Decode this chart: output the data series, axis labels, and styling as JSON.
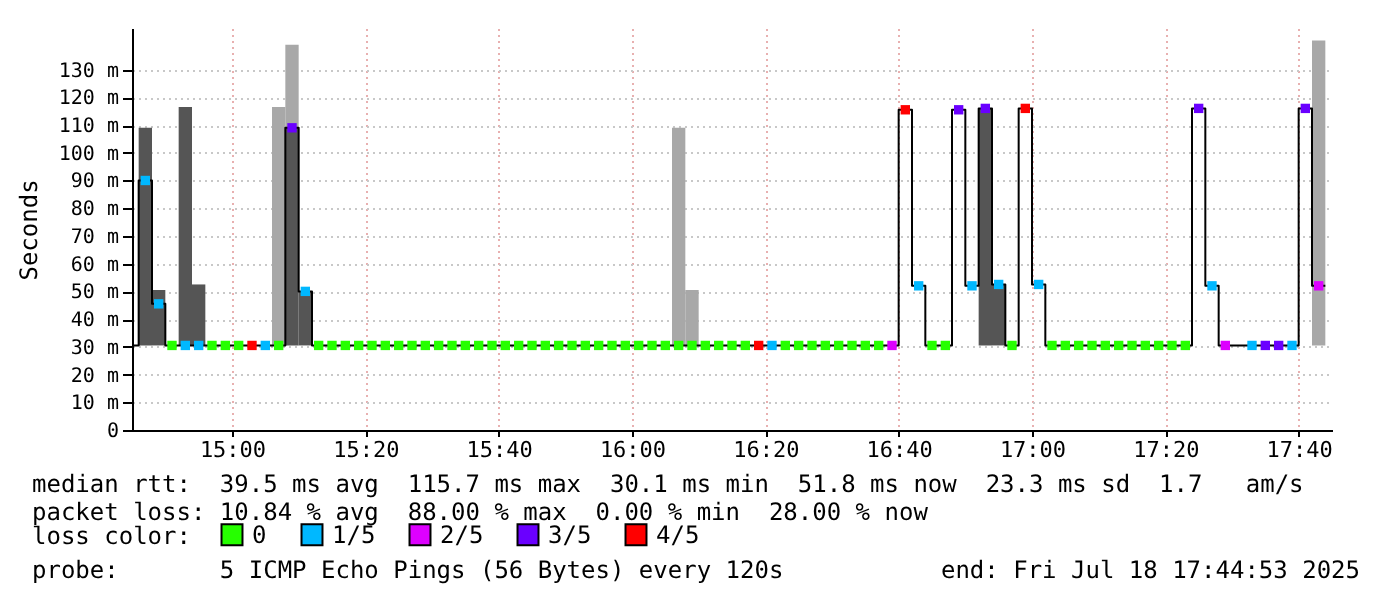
{
  "chart_data": {
    "type": "step",
    "ylabel": "Seconds",
    "xlim": [
      "2025-07-18T14:45",
      "2025-07-18T17:45"
    ],
    "xticks": [
      {
        "value": "2025-07-18T15:00",
        "label": "15:00"
      },
      {
        "value": "2025-07-18T15:20",
        "label": "15:20"
      },
      {
        "value": "2025-07-18T15:40",
        "label": "15:40"
      },
      {
        "value": "2025-07-18T16:00",
        "label": "16:00"
      },
      {
        "value": "2025-07-18T16:20",
        "label": "16:20"
      },
      {
        "value": "2025-07-18T16:40",
        "label": "16:40"
      },
      {
        "value": "2025-07-18T17:00",
        "label": "17:00"
      },
      {
        "value": "2025-07-18T17:20",
        "label": "17:20"
      },
      {
        "value": "2025-07-18T17:40",
        "label": "17:40"
      }
    ],
    "ylim": [
      0,
      145
    ],
    "yticks": [
      0,
      {
        "value": 10,
        "label": "10 m"
      },
      {
        "value": 20,
        "label": "20 m"
      },
      {
        "value": 30,
        "label": "30 m"
      },
      {
        "value": 40,
        "label": "40 m"
      },
      {
        "value": 50,
        "label": "50 m"
      },
      {
        "value": 60,
        "label": "60 m"
      },
      {
        "value": 70,
        "label": "70 m"
      },
      {
        "value": 80,
        "label": "80 m"
      },
      {
        "value": 90,
        "label": "90 m"
      },
      {
        "value": 100,
        "label": "100 m"
      },
      {
        "value": 110,
        "label": "110 m"
      },
      {
        "value": 120,
        "label": "120 m"
      },
      {
        "value": 130,
        "label": "130 m"
      }
    ],
    "grid": true,
    "legend": "bottom left",
    "legend_title": "loss color:",
    "marker": "square",
    "line_style": "solid",
    "annotations": [
      "median rtt:  39.5 ms avg  115.7 ms max  30.1 ms min  51.8 ms now  23.3 ms sd  1.7   am/s",
      "packet loss: 10.84 % avg  88.00 % max  0.00 % min  28.00 % now",
      "probe:       5 ICMP Echo Pings (56 Bytes) every 120s",
      "end: Fri Jul 18 17:44:53 2025"
    ],
    "series": [
      {
        "type": "bar",
        "color": "#555555",
        "x": [
          "2025-07-18T14:47",
          "2025-07-18T14:49",
          "2025-07-18T14:53",
          "2025-07-18T14:55",
          "2025-07-18T15:09",
          "2025-07-18T15:11",
          "2025-07-18T16:53",
          "2025-07-18T16:55"
        ],
        "base": [
          30.5,
          30.5,
          30.5,
          30.5,
          30.5,
          30.5,
          30.5,
          30.5
        ],
        "values": [
          78.5,
          20,
          86,
          22,
          78.5,
          19.5,
          85.5,
          22
        ]
      },
      {
        "type": "bar",
        "color": "#a8a8a8",
        "x": [
          "2025-07-18T15:07",
          "2025-07-18T15:09",
          "2025-07-18T16:07",
          "2025-07-18T16:09",
          "2025-07-18T17:43"
        ],
        "base": [
          30.5,
          109,
          30.5,
          30.5,
          30.5
        ],
        "values": [
          86,
          30,
          78.5,
          20,
          110
        ]
      },
      {
        "color": "#000000",
        "marker": "none",
        "x": [
          "2025-07-18T14:45",
          "2025-07-18T14:46",
          "2025-07-18T14:48",
          "2025-07-18T14:50",
          "2025-07-18T15:08",
          "2025-07-18T15:10",
          "2025-07-18T15:12",
          "2025-07-18T16:40",
          "2025-07-18T16:42",
          "2025-07-18T16:44",
          "2025-07-18T16:48",
          "2025-07-18T16:50",
          "2025-07-18T16:52",
          "2025-07-18T16:54",
          "2025-07-18T16:56",
          "2025-07-18T16:58",
          "2025-07-18T17:00",
          "2025-07-18T17:02",
          "2025-07-18T17:24",
          "2025-07-18T17:26",
          "2025-07-18T17:28",
          "2025-07-18T17:40",
          "2025-07-18T17:42",
          "2025-07-18T17:44"
        ],
        "values": [
          30.5,
          90,
          45.5,
          30.5,
          109,
          50,
          30.5,
          115.5,
          52,
          30.5,
          115.5,
          52,
          116,
          52.5,
          30.5,
          116,
          52.5,
          30.5,
          116,
          52,
          30.5,
          116,
          52,
          52
        ]
      },
      {
        "type": "scatter",
        "name": "0",
        "color": "#26ff00",
        "x": [
          "2025-07-18T14:51",
          "2025-07-18T14:57",
          "2025-07-18T14:59",
          "2025-07-18T15:01",
          "2025-07-18T15:07",
          "2025-07-18T15:13",
          "2025-07-18T15:15",
          "2025-07-18T15:17",
          "2025-07-18T15:19",
          "2025-07-18T15:21",
          "2025-07-18T15:23",
          "2025-07-18T15:25",
          "2025-07-18T15:27",
          "2025-07-18T15:29",
          "2025-07-18T15:31",
          "2025-07-18T15:33",
          "2025-07-18T15:35",
          "2025-07-18T15:37",
          "2025-07-18T15:39",
          "2025-07-18T15:41",
          "2025-07-18T15:43",
          "2025-07-18T15:45",
          "2025-07-18T15:47",
          "2025-07-18T15:49",
          "2025-07-18T15:51",
          "2025-07-18T15:53",
          "2025-07-18T15:55",
          "2025-07-18T15:57",
          "2025-07-18T15:59",
          "2025-07-18T16:01",
          "2025-07-18T16:03",
          "2025-07-18T16:05",
          "2025-07-18T16:07",
          "2025-07-18T16:09",
          "2025-07-18T16:11",
          "2025-07-18T16:13",
          "2025-07-18T16:15",
          "2025-07-18T16:17",
          "2025-07-18T16:23",
          "2025-07-18T16:25",
          "2025-07-18T16:27",
          "2025-07-18T16:29",
          "2025-07-18T16:31",
          "2025-07-18T16:33",
          "2025-07-18T16:35",
          "2025-07-18T16:37",
          "2025-07-18T16:45",
          "2025-07-18T16:47",
          "2025-07-18T16:57",
          "2025-07-18T17:03",
          "2025-07-18T17:05",
          "2025-07-18T17:07",
          "2025-07-18T17:09",
          "2025-07-18T17:11",
          "2025-07-18T17:13",
          "2025-07-18T17:15",
          "2025-07-18T17:17",
          "2025-07-18T17:19",
          "2025-07-18T17:21",
          "2025-07-18T17:23"
        ],
        "values": [
          30.5,
          30.5,
          30.5,
          30.5,
          30.5,
          30.5,
          30.5,
          30.5,
          30.5,
          30.5,
          30.5,
          30.5,
          30.5,
          30.5,
          30.5,
          30.5,
          30.5,
          30.5,
          30.5,
          30.5,
          30.5,
          30.5,
          30.5,
          30.5,
          30.5,
          30.5,
          30.5,
          30.5,
          30.5,
          30.5,
          30.5,
          30.5,
          30.5,
          30.5,
          30.5,
          30.5,
          30.5,
          30.5,
          30.5,
          30.5,
          30.5,
          30.5,
          30.5,
          30.5,
          30.5,
          30.5,
          30.5,
          30.5,
          30.5,
          30.5,
          30.5,
          30.5,
          30.5,
          30.5,
          30.5,
          30.5,
          30.5,
          30.5,
          30.5,
          30.5
        ]
      },
      {
        "type": "scatter",
        "name": "1/5",
        "color": "#00b8ff",
        "x": [
          "2025-07-18T14:47",
          "2025-07-18T14:49",
          "2025-07-18T14:53",
          "2025-07-18T14:55",
          "2025-07-18T15:05",
          "2025-07-18T15:11",
          "2025-07-18T16:21",
          "2025-07-18T16:43",
          "2025-07-18T16:51",
          "2025-07-18T16:55",
          "2025-07-18T17:01",
          "2025-07-18T17:27",
          "2025-07-18T17:33",
          "2025-07-18T17:39"
        ],
        "values": [
          90,
          45.5,
          30.5,
          30.5,
          30.5,
          50,
          30.5,
          52,
          52,
          52.5,
          52.5,
          52,
          30.5,
          30.5
        ]
      },
      {
        "type": "scatter",
        "name": "2/5",
        "color": "#dd00ff",
        "x": [
          "2025-07-18T16:39",
          "2025-07-18T17:29",
          "2025-07-18T17:43"
        ],
        "values": [
          30.5,
          30.5,
          52
        ]
      },
      {
        "type": "scatter",
        "name": "3/5",
        "color": "#6a00ff",
        "x": [
          "2025-07-18T15:09",
          "2025-07-18T16:49",
          "2025-07-18T16:53",
          "2025-07-18T17:25",
          "2025-07-18T17:35",
          "2025-07-18T17:37",
          "2025-07-18T17:41"
        ],
        "values": [
          109,
          115.5,
          116,
          116,
          30.5,
          30.5,
          116
        ]
      },
      {
        "type": "scatter",
        "name": "4/5",
        "color": "#ff0000",
        "x": [
          "2025-07-18T15:03",
          "2025-07-18T16:19",
          "2025-07-18T16:41",
          "2025-07-18T16:59"
        ],
        "values": [
          30.5,
          30.5,
          115.5,
          116
        ]
      }
    ]
  }
}
